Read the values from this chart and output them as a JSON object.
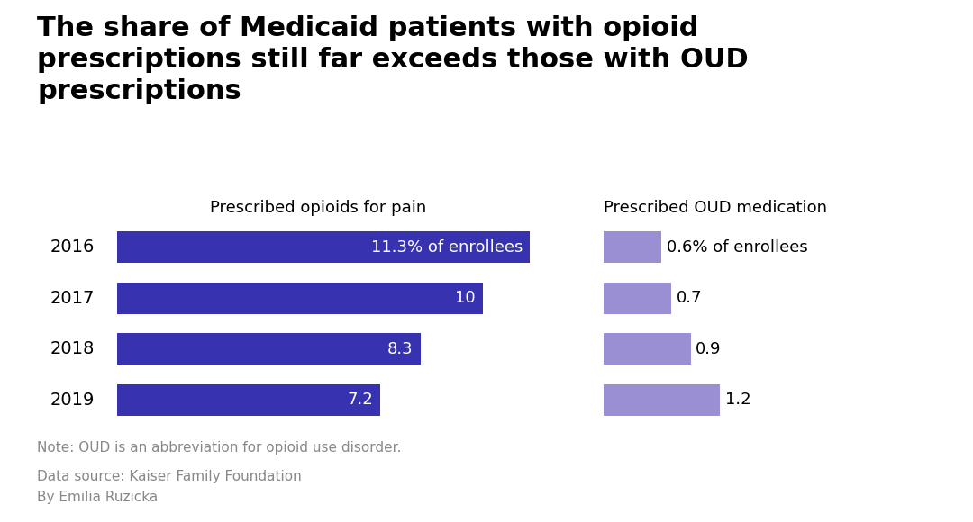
{
  "title": "The share of Medicaid patients with opioid\nprescriptions still far exceeds those with OUD\nprescriptions",
  "years": [
    "2016",
    "2017",
    "2018",
    "2019"
  ],
  "opioid_values": [
    11.3,
    10.0,
    8.3,
    7.2
  ],
  "oud_values": [
    0.6,
    0.7,
    0.9,
    1.2
  ],
  "opioid_labels": [
    "11.3% of enrollees",
    "10",
    "8.3",
    "7.2"
  ],
  "oud_labels": [
    "0.6% of enrollees",
    "0.7",
    "0.9",
    "1.2"
  ],
  "opioid_color": "#3733b0",
  "oud_color": "#9b8fd4",
  "opioid_header": "Prescribed opioids for pain",
  "oud_header": "Prescribed OUD medication",
  "note": "Note: OUD is an abbreviation for opioid use disorder.",
  "source": "Data source: Kaiser Family Foundation",
  "author": "By Emilia Ruzicka",
  "background_color": "#ffffff",
  "title_fontsize": 22,
  "label_fontsize": 13,
  "header_fontsize": 13,
  "year_fontsize": 14,
  "note_fontsize": 11,
  "note_color": "#888888"
}
